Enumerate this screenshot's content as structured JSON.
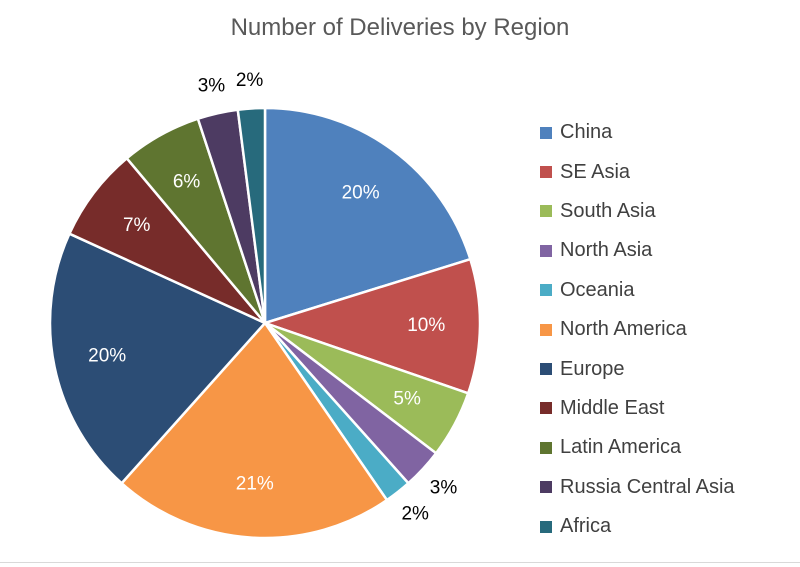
{
  "chart_data": {
    "type": "pie",
    "title": "Number of Deliveries by Region",
    "categories": [
      "China",
      "SE Asia",
      "South Asia",
      "North Asia",
      "Oceania",
      "North America",
      "Europe",
      "Middle East",
      "Latin America",
      "Russia Central Asia",
      "Africa"
    ],
    "values": [
      20,
      10,
      5,
      3,
      2,
      21,
      20,
      7,
      6,
      3,
      2
    ],
    "labels": [
      "20%",
      "10%",
      "5%",
      "3%",
      "2%",
      "21%",
      "20%",
      "7%",
      "6%",
      "3%",
      "2%"
    ],
    "colors": [
      "#4f81bd",
      "#c0504d",
      "#9bbb59",
      "#8064a2",
      "#4bacc6",
      "#f79646",
      "#2c4d75",
      "#772c2a",
      "#5f7530",
      "#4d3b62",
      "#276a7c"
    ],
    "label_placement": [
      "inside",
      "inside",
      "inside",
      "outside",
      "outside",
      "inside",
      "inside",
      "inside",
      "inside",
      "outside",
      "outside"
    ],
    "legend_position": "right",
    "start_angle_degrees": 0,
    "direction": "clockwise"
  }
}
